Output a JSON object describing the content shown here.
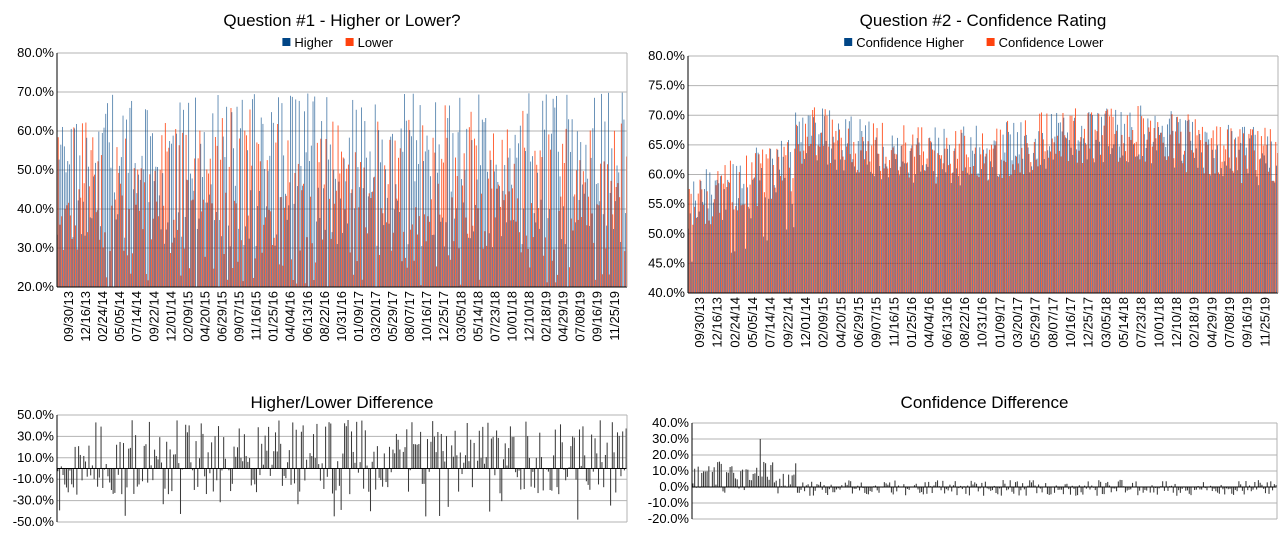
{
  "colors": {
    "blue": "#004586",
    "orange": "#ff420e",
    "grid": "#b3b3b3",
    "diff": "#3a3a3a",
    "axis": "#000000"
  },
  "chart_data": [
    {
      "id": "q1",
      "type": "bar",
      "title": "Question #1 - Higher or Lower?",
      "legend_position": "top-center",
      "series": [
        {
          "name": "Higher",
          "color": "#004586"
        },
        {
          "name": "Lower",
          "color": "#ff420e"
        }
      ],
      "yticks": [
        "20.0%",
        "30.0%",
        "40.0%",
        "50.0%",
        "60.0%",
        "70.0%",
        "80.0%"
      ],
      "ylim": [
        20,
        80
      ],
      "xticks": [
        "09/30/13",
        "12/16/13",
        "02/24/14",
        "05/05/14",
        "07/14/14",
        "09/22/14",
        "12/01/14",
        "02/09/15",
        "04/20/15",
        "06/29/15",
        "09/07/15",
        "11/16/15",
        "01/25/16",
        "04/04/16",
        "06/13/16",
        "08/22/16",
        "10/31/16",
        "01/09/17",
        "03/20/17",
        "05/29/17",
        "08/07/17",
        "10/16/17",
        "12/25/17",
        "03/05/18",
        "05/14/18",
        "07/23/18",
        "10/01/18",
        "12/10/18",
        "02/18/19",
        "04/29/19",
        "07/08/19",
        "09/16/19",
        "11/25/19"
      ],
      "grid": true
    },
    {
      "id": "q2",
      "type": "bar",
      "title": "Question #2 - Confidence Rating",
      "legend_position": "top-center",
      "series": [
        {
          "name": "Confidence Higher",
          "color": "#004586"
        },
        {
          "name": "Confidence Lower",
          "color": "#ff420e"
        }
      ],
      "yticks": [
        "40.0%",
        "45.0%",
        "50.0%",
        "55.0%",
        "60.0%",
        "65.0%",
        "70.0%",
        "75.0%",
        "80.0%"
      ],
      "ylim": [
        40,
        80
      ],
      "xticks": [
        "09/30/13",
        "12/16/13",
        "02/24/14",
        "05/05/14",
        "07/14/14",
        "09/22/14",
        "12/01/14",
        "02/09/15",
        "04/20/15",
        "06/29/15",
        "09/07/15",
        "11/16/15",
        "01/25/16",
        "04/04/16",
        "06/13/16",
        "08/22/16",
        "10/31/16",
        "01/09/17",
        "03/20/17",
        "05/29/17",
        "08/07/17",
        "10/16/17",
        "12/25/17",
        "03/05/18",
        "05/14/18",
        "07/23/18",
        "10/01/18",
        "12/10/18",
        "02/18/19",
        "04/29/19",
        "07/08/19",
        "09/16/19",
        "11/25/19"
      ],
      "grid": true
    },
    {
      "id": "d1",
      "type": "bar",
      "title": "Higher/Lower Difference",
      "yticks": [
        "-50.0%",
        "-30.0%",
        "-10.0%",
        "10.0%",
        "30.0%",
        "50.0%"
      ],
      "ylim": [
        -50,
        50
      ],
      "baseline": 0,
      "grid": true
    },
    {
      "id": "d2",
      "type": "bar",
      "title": "Confidence Difference",
      "yticks": [
        "-20.0%",
        "-10.0%",
        "0.0%",
        "10.0%",
        "20.0%",
        "30.0%",
        "40.0%"
      ],
      "ylim": [
        -20,
        40
      ],
      "baseline": 0,
      "grid": true
    }
  ]
}
